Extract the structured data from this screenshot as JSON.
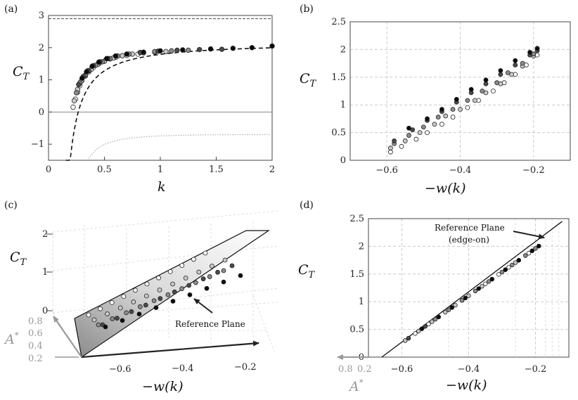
{
  "chart_data": [
    {
      "panel": "(a)",
      "type": "scatter",
      "xlabel": "k",
      "ylabel": "C_T",
      "xlim": [
        0,
        2
      ],
      "ylim": [
        -1.5,
        3
      ],
      "xticks": [
        "0",
        "0.5",
        "1",
        "1.5",
        "2"
      ],
      "yticks": [
        "−1",
        "0",
        "1",
        "2",
        "3"
      ],
      "lines": {
        "upper_bound": 2.9,
        "zero_line": 0,
        "dashed_asymptote": 2.15
      },
      "series": [
        {
          "shade": "#ffffff",
          "x": [
            0.22,
            0.24,
            0.26,
            0.28,
            0.3,
            0.33,
            0.36,
            0.4,
            0.45,
            0.5,
            0.55,
            0.6,
            0.7,
            0.8
          ],
          "y": [
            0.15,
            0.4,
            0.62,
            0.82,
            0.98,
            1.12,
            1.25,
            1.38,
            1.5,
            1.58,
            1.65,
            1.7,
            1.76,
            1.8
          ]
        },
        {
          "shade": "#c8c8c8",
          "x": [
            0.23,
            0.26,
            0.29,
            0.33,
            0.38,
            0.44,
            0.5,
            0.58,
            0.66,
            0.75,
            0.85,
            0.95,
            1.05
          ],
          "y": [
            0.35,
            0.7,
            0.95,
            1.15,
            1.32,
            1.48,
            1.58,
            1.68,
            1.75,
            1.8,
            1.84,
            1.86,
            1.88
          ]
        },
        {
          "shade": "#8c8c8c",
          "x": [
            0.25,
            0.28,
            0.32,
            0.36,
            0.42,
            0.48,
            0.55,
            0.62,
            0.72,
            0.82,
            0.95,
            1.1,
            1.25
          ],
          "y": [
            0.6,
            0.9,
            1.12,
            1.28,
            1.45,
            1.56,
            1.66,
            1.74,
            1.8,
            1.85,
            1.88,
            1.9,
            1.92
          ]
        },
        {
          "shade": "#4a4a4a",
          "x": [
            0.27,
            0.31,
            0.35,
            0.4,
            0.46,
            0.53,
            0.6,
            0.7,
            0.82,
            0.98,
            1.15,
            1.35,
            1.55
          ],
          "y": [
            0.85,
            1.1,
            1.28,
            1.44,
            1.56,
            1.66,
            1.74,
            1.8,
            1.85,
            1.89,
            1.92,
            1.94,
            1.95
          ]
        },
        {
          "shade": "#0a0a0a",
          "x": [
            0.3,
            0.34,
            0.39,
            0.45,
            0.52,
            0.6,
            0.7,
            0.85,
            1.0,
            1.2,
            1.45,
            1.65,
            1.82,
            2.0
          ],
          "y": [
            1.05,
            1.25,
            1.42,
            1.55,
            1.66,
            1.74,
            1.8,
            1.86,
            1.9,
            1.93,
            1.96,
            1.98,
            2.0,
            2.05
          ]
        }
      ]
    },
    {
      "panel": "(b)",
      "type": "scatter",
      "xlabel": "−w(k)",
      "ylabel": "C_T",
      "xlim": [
        -0.7,
        -0.1
      ],
      "ylim": [
        0,
        2.5
      ],
      "xticks": [
        "−0.6",
        "−0.4",
        "−0.2"
      ],
      "yticks": [
        "0",
        "0.5",
        "1",
        "1.5",
        "2",
        "2.5"
      ],
      "series": [
        {
          "shade": "#ffffff",
          "x": [
            -0.59,
            -0.56,
            -0.52,
            -0.49,
            -0.45,
            -0.42,
            -0.38,
            -0.35,
            -0.31,
            -0.28,
            -0.25,
            -0.22,
            -0.19
          ],
          "y": [
            0.15,
            0.25,
            0.38,
            0.5,
            0.65,
            0.78,
            0.95,
            1.08,
            1.25,
            1.4,
            1.55,
            1.72,
            1.9
          ]
        },
        {
          "shade": "#c8c8c8",
          "x": [
            -0.59,
            -0.55,
            -0.51,
            -0.47,
            -0.44,
            -0.4,
            -0.36,
            -0.33,
            -0.29,
            -0.26,
            -0.23,
            -0.2
          ],
          "y": [
            0.22,
            0.35,
            0.5,
            0.65,
            0.8,
            0.92,
            1.08,
            1.22,
            1.38,
            1.55,
            1.7,
            1.88
          ]
        },
        {
          "shade": "#8c8c8c",
          "x": [
            -0.58,
            -0.54,
            -0.5,
            -0.46,
            -0.42,
            -0.38,
            -0.34,
            -0.3,
            -0.27,
            -0.23,
            -0.2
          ],
          "y": [
            0.3,
            0.45,
            0.6,
            0.78,
            0.92,
            1.08,
            1.25,
            1.4,
            1.58,
            1.75,
            1.92
          ]
        },
        {
          "shade": "#4a4a4a",
          "x": [
            -0.58,
            -0.53,
            -0.49,
            -0.45,
            -0.41,
            -0.37,
            -0.33,
            -0.29,
            -0.25,
            -0.21,
            -0.19
          ],
          "y": [
            0.35,
            0.55,
            0.72,
            0.88,
            1.05,
            1.22,
            1.38,
            1.55,
            1.72,
            1.9,
            1.98
          ]
        },
        {
          "shade": "#0a0a0a",
          "x": [
            -0.54,
            -0.49,
            -0.45,
            -0.41,
            -0.37,
            -0.33,
            -0.29,
            -0.25,
            -0.21,
            -0.19
          ],
          "y": [
            0.58,
            0.75,
            0.92,
            1.1,
            1.28,
            1.45,
            1.62,
            1.8,
            1.95,
            2.02
          ]
        }
      ]
    },
    {
      "panel": "(c)",
      "type": "scatter",
      "xlabel": "−w(k)",
      "ylabel": "C_T",
      "zlabel": "A*",
      "xticks": [
        "−0.6",
        "−0.4",
        "−0.2"
      ],
      "yticks": [
        "0",
        "1",
        "2"
      ],
      "zticks": [
        "0.8",
        "0.6",
        "0.4",
        "0.2"
      ],
      "annotation": "Reference Plane"
    },
    {
      "panel": "(d)",
      "type": "scatter",
      "xlabel": "−w(k)",
      "ylabel": "C_T",
      "zlabel": "A*",
      "xlim": [
        -0.7,
        -0.1
      ],
      "ylim": [
        0,
        2.5
      ],
      "xticks": [
        "−0.6",
        "−0.4",
        "−0.2"
      ],
      "yticks": [
        "0",
        "0.5",
        "1",
        "1.5",
        "2",
        "2.5"
      ],
      "zticks": [
        "0.8",
        "0.2"
      ],
      "annotation_line1": "Reference Plane",
      "annotation_line2": "(edge-on)",
      "reference_line": {
        "x": [
          -0.66,
          -0.12
        ],
        "y": [
          0.0,
          2.45
        ]
      }
    }
  ]
}
